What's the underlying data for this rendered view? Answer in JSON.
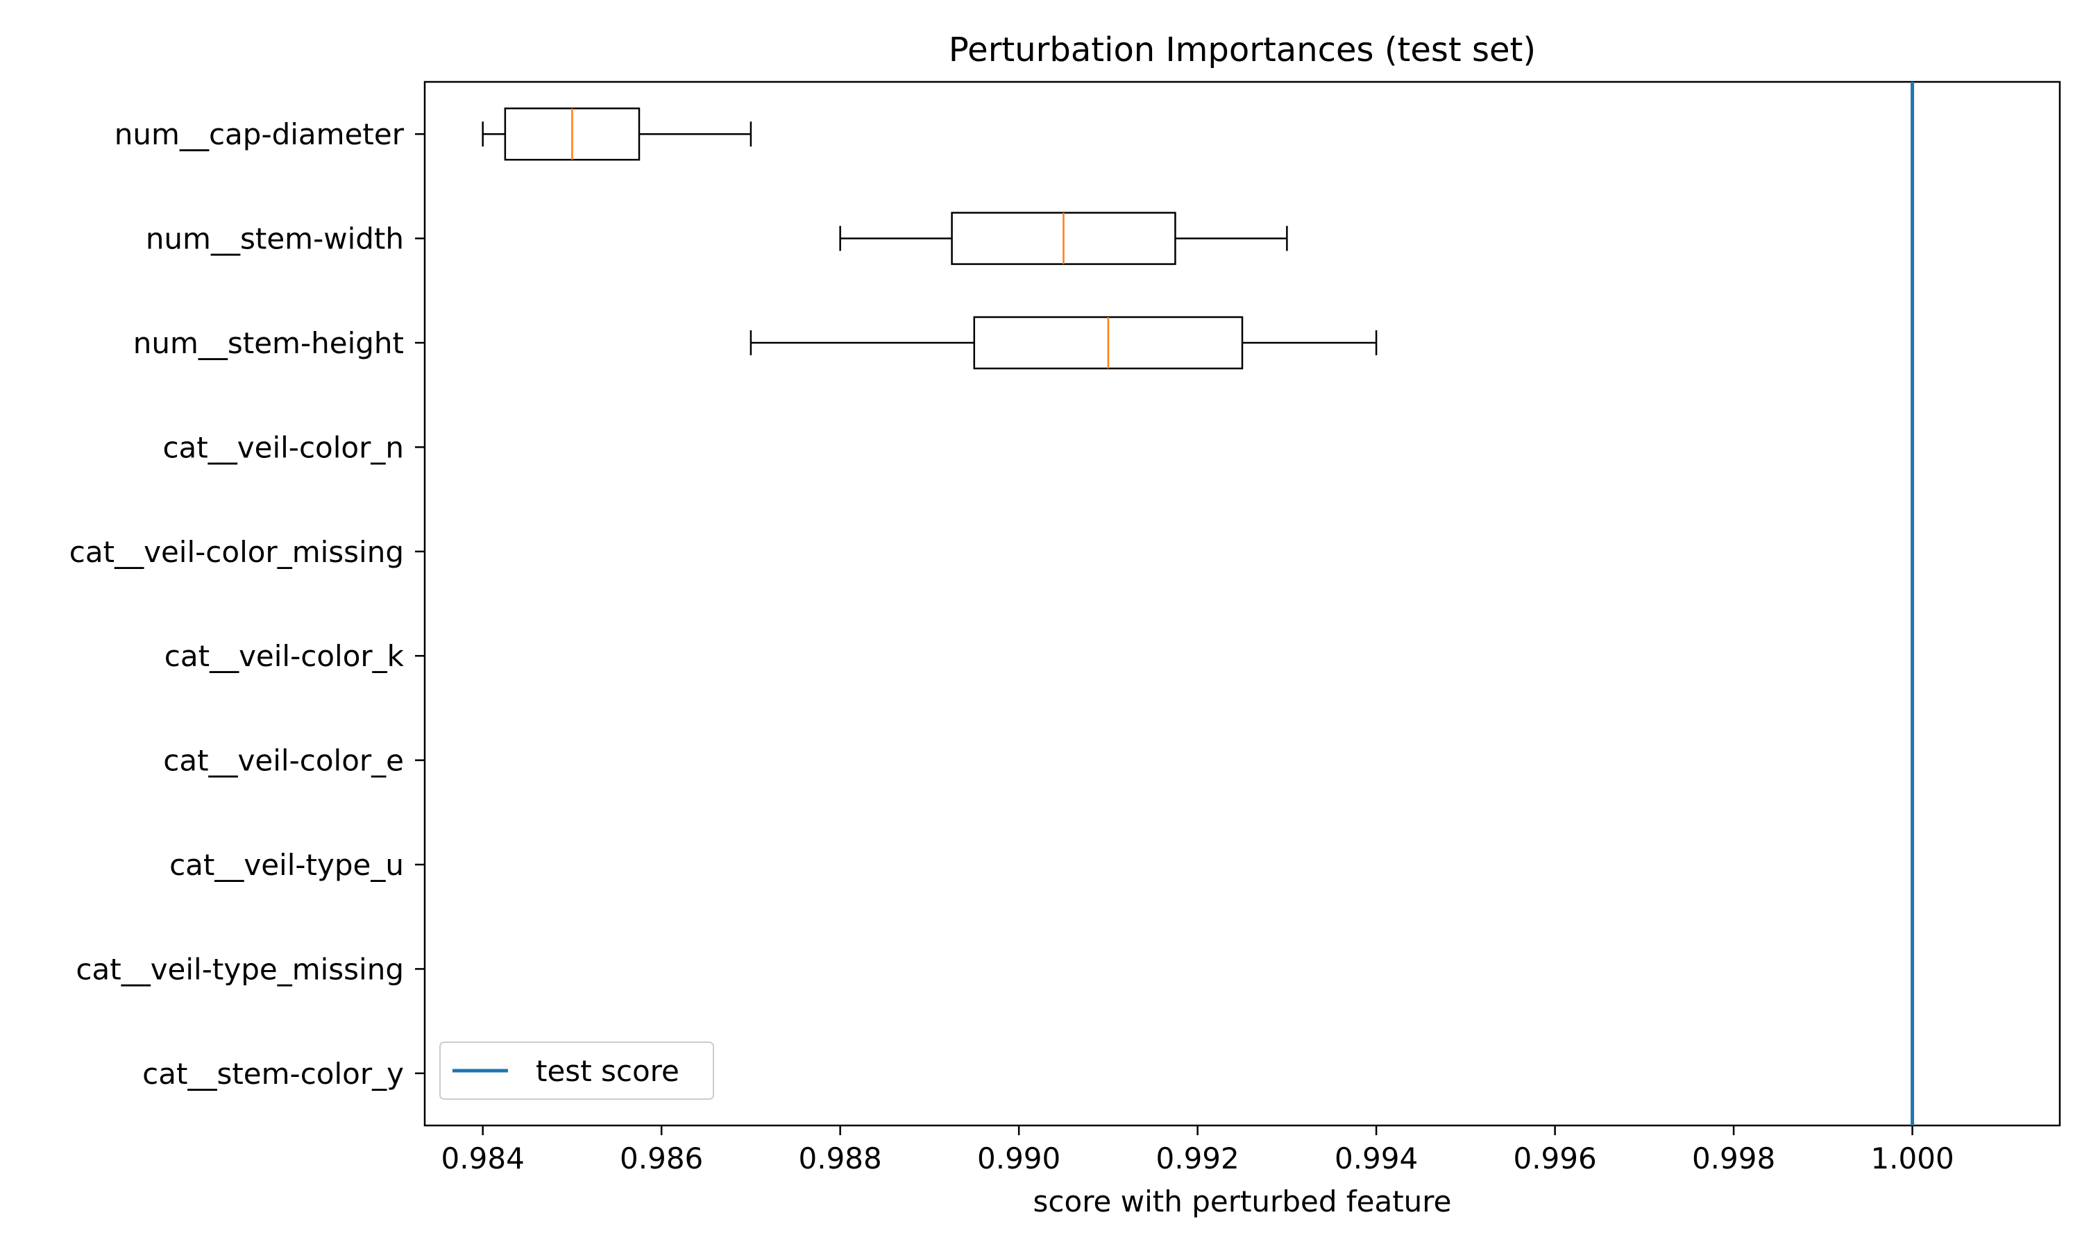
{
  "chart_data": {
    "type": "boxplot-horizontal",
    "title": "Perturbation Importances (test set)",
    "xlabel": "score with perturbed feature",
    "ylabel": "",
    "xlim": [
      0.98335,
      1.00165
    ],
    "xticks": [
      "0.984",
      "0.986",
      "0.988",
      "0.990",
      "0.992",
      "0.994",
      "0.996",
      "0.998",
      "1.000"
    ],
    "grid": false,
    "legend_position": "bottom-left",
    "reference_line": {
      "name": "test score",
      "value": 1.0,
      "color": "#1f77b4"
    },
    "box_color": "#000000",
    "median_color": "#ff7f0e",
    "features": [
      {
        "name": "num__cap-diameter",
        "whisker_low": 0.984,
        "q1": 0.98425,
        "median": 0.985,
        "q3": 0.98575,
        "whisker_high": 0.987
      },
      {
        "name": "num__stem-width",
        "whisker_low": 0.988,
        "q1": 0.98925,
        "median": 0.9905,
        "q3": 0.99175,
        "whisker_high": 0.993
      },
      {
        "name": "num__stem-height",
        "whisker_low": 0.987,
        "q1": 0.9895,
        "median": 0.991,
        "q3": 0.9925,
        "whisker_high": 0.994
      },
      {
        "name": "cat__veil-color_n",
        "whisker_low": 1.0,
        "q1": 1.0,
        "median": 1.0,
        "q3": 1.0,
        "whisker_high": 1.0
      },
      {
        "name": "cat__veil-color_missing",
        "whisker_low": 1.0,
        "q1": 1.0,
        "median": 1.0,
        "q3": 1.0,
        "whisker_high": 1.0
      },
      {
        "name": "cat__veil-color_k",
        "whisker_low": 1.0,
        "q1": 1.0,
        "median": 1.0,
        "q3": 1.0,
        "whisker_high": 1.0
      },
      {
        "name": "cat__veil-color_e",
        "whisker_low": 1.0,
        "q1": 1.0,
        "median": 1.0,
        "q3": 1.0,
        "whisker_high": 1.0
      },
      {
        "name": "cat__veil-type_u",
        "whisker_low": 1.0,
        "q1": 1.0,
        "median": 1.0,
        "q3": 1.0,
        "whisker_high": 1.0
      },
      {
        "name": "cat__veil-type_missing",
        "whisker_low": 1.0,
        "q1": 1.0,
        "median": 1.0,
        "q3": 1.0,
        "whisker_high": 1.0
      },
      {
        "name": "cat__stem-color_y",
        "whisker_low": 1.0,
        "q1": 1.0,
        "median": 1.0,
        "q3": 1.0,
        "whisker_high": 1.0
      }
    ]
  }
}
